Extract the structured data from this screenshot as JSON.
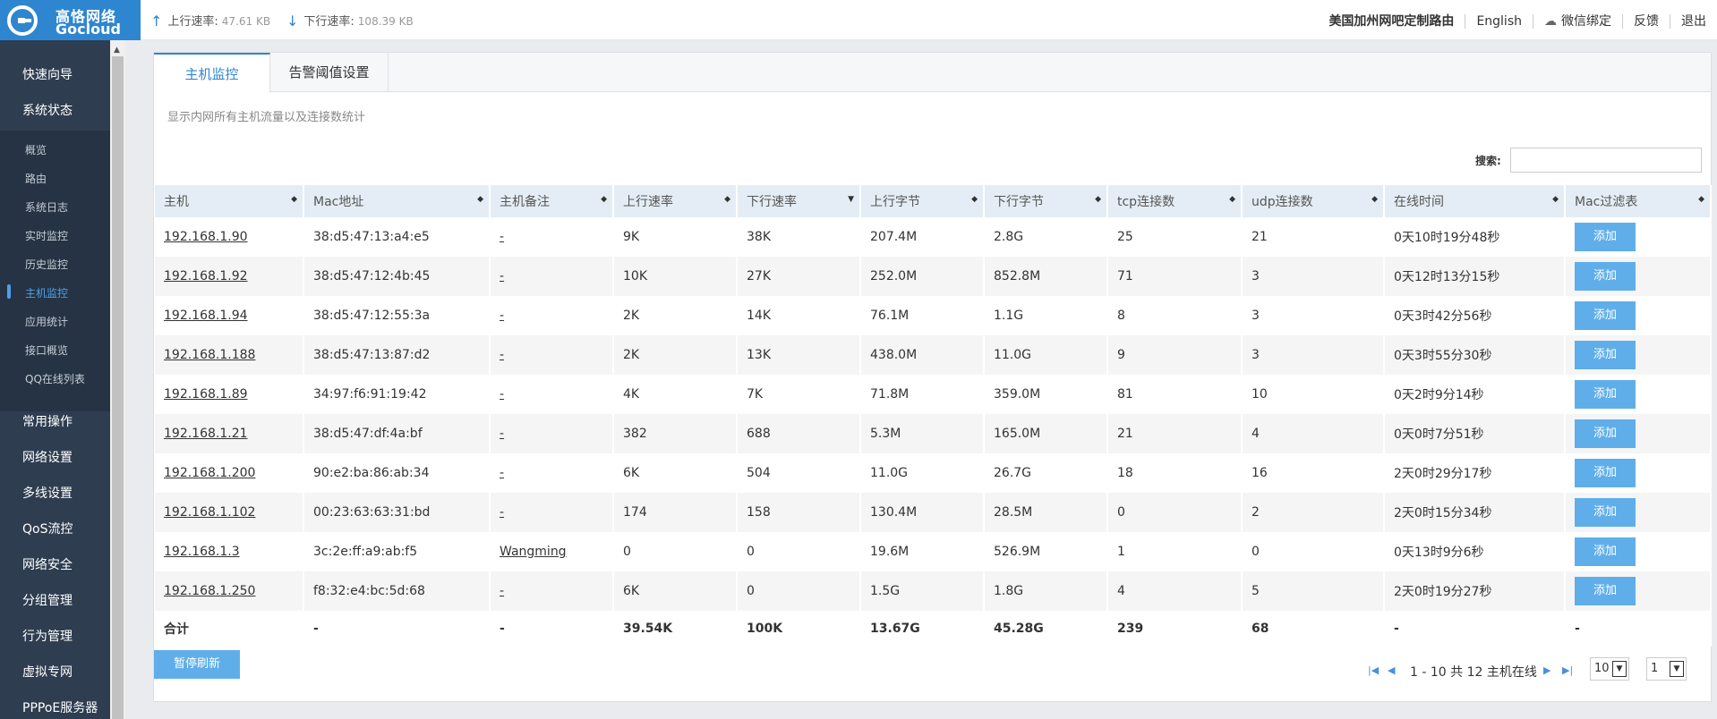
{
  "brand": {
    "name_cn": "高恪网络",
    "name_en": "Gocloud"
  },
  "topbar": {
    "upload_label": "上行速率:",
    "upload_value": "47.61 KB",
    "download_label": "下行速率:",
    "download_value": "108.39 KB",
    "links": [
      "美国加州网吧定制路由",
      "English",
      "微信绑定",
      "反馈",
      "退出"
    ]
  },
  "sidebar": {
    "majors_top": [
      "快速向导",
      "系统状态"
    ],
    "minors": [
      "概览",
      "路由",
      "系统日志",
      "实时监控",
      "历史监控",
      "主机监控",
      "应用统计",
      "接口概览",
      "QQ在线列表"
    ],
    "active_minor": "主机监控",
    "majors_bottom": [
      "常用操作",
      "网络设置",
      "多线设置",
      "QoS流控",
      "网络安全",
      "分组管理",
      "行为管理",
      "虚拟专网",
      "PPPoE服务器"
    ]
  },
  "tabs": [
    "主机监控",
    "告警阈值设置"
  ],
  "description": "显示内网所有主机流量以及连接数统计",
  "search": {
    "label": "搜索:",
    "value": ""
  },
  "table": {
    "headers": [
      "主机",
      "Mac地址",
      "主机备注",
      "上行速率",
      "下行速率",
      "上行字节",
      "下行字节",
      "tcp连接数",
      "udp连接数",
      "在线时间",
      "Mac过滤表"
    ],
    "add_label": "添加",
    "rows": [
      [
        "192.168.1.90",
        "38:d5:47:13:a4:e5",
        "-",
        "9K",
        "38K",
        "207.4M",
        "2.8G",
        "25",
        "21",
        "0天10时19分48秒"
      ],
      [
        "192.168.1.92",
        "38:d5:47:12:4b:45",
        "-",
        "10K",
        "27K",
        "252.0M",
        "852.8M",
        "71",
        "3",
        "0天12时13分15秒"
      ],
      [
        "192.168.1.94",
        "38:d5:47:12:55:3a",
        "-",
        "2K",
        "14K",
        "76.1M",
        "1.1G",
        "8",
        "3",
        "0天3时42分56秒"
      ],
      [
        "192.168.1.188",
        "38:d5:47:13:87:d2",
        "-",
        "2K",
        "13K",
        "438.0M",
        "11.0G",
        "9",
        "3",
        "0天3时55分30秒"
      ],
      [
        "192.168.1.89",
        "34:97:f6:91:19:42",
        "-",
        "4K",
        "7K",
        "71.8M",
        "359.0M",
        "81",
        "10",
        "0天2时9分14秒"
      ],
      [
        "192.168.1.21",
        "38:d5:47:df:4a:bf",
        "-",
        "382",
        "688",
        "5.3M",
        "165.0M",
        "21",
        "4",
        "0天0时7分51秒"
      ],
      [
        "192.168.1.200",
        "90:e2:ba:86:ab:34",
        "-",
        "6K",
        "504",
        "11.0G",
        "26.7G",
        "18",
        "16",
        "2天0时29分17秒"
      ],
      [
        "192.168.1.102",
        "00:23:63:63:31:bd",
        "-",
        "174",
        "158",
        "130.4M",
        "28.5M",
        "0",
        "2",
        "2天0时15分34秒"
      ],
      [
        "192.168.1.3",
        "3c:2e:ff:a9:ab:f5",
        "Wangming",
        "0",
        "0",
        "19.6M",
        "526.9M",
        "1",
        "0",
        "0天13时9分6秒"
      ],
      [
        "192.168.1.250",
        "f8:32:e4:bc:5d:68",
        "-",
        "6K",
        "0",
        "1.5G",
        "1.8G",
        "4",
        "5",
        "2天0时19分27秒"
      ]
    ],
    "total": [
      "合计",
      "-",
      "-",
      "39.54K",
      "100K",
      "13.67G",
      "45.28G",
      "239",
      "68",
      "-",
      "-"
    ]
  },
  "footer": {
    "pause_label": "暂停刷新",
    "pager_text": "1 - 10 共 12 主机在线",
    "page_size": "10",
    "page_num": "1"
  },
  "colors": {
    "accent": "#2f86d0",
    "button": "#60aee9",
    "sidebar": "#2e3d50"
  }
}
